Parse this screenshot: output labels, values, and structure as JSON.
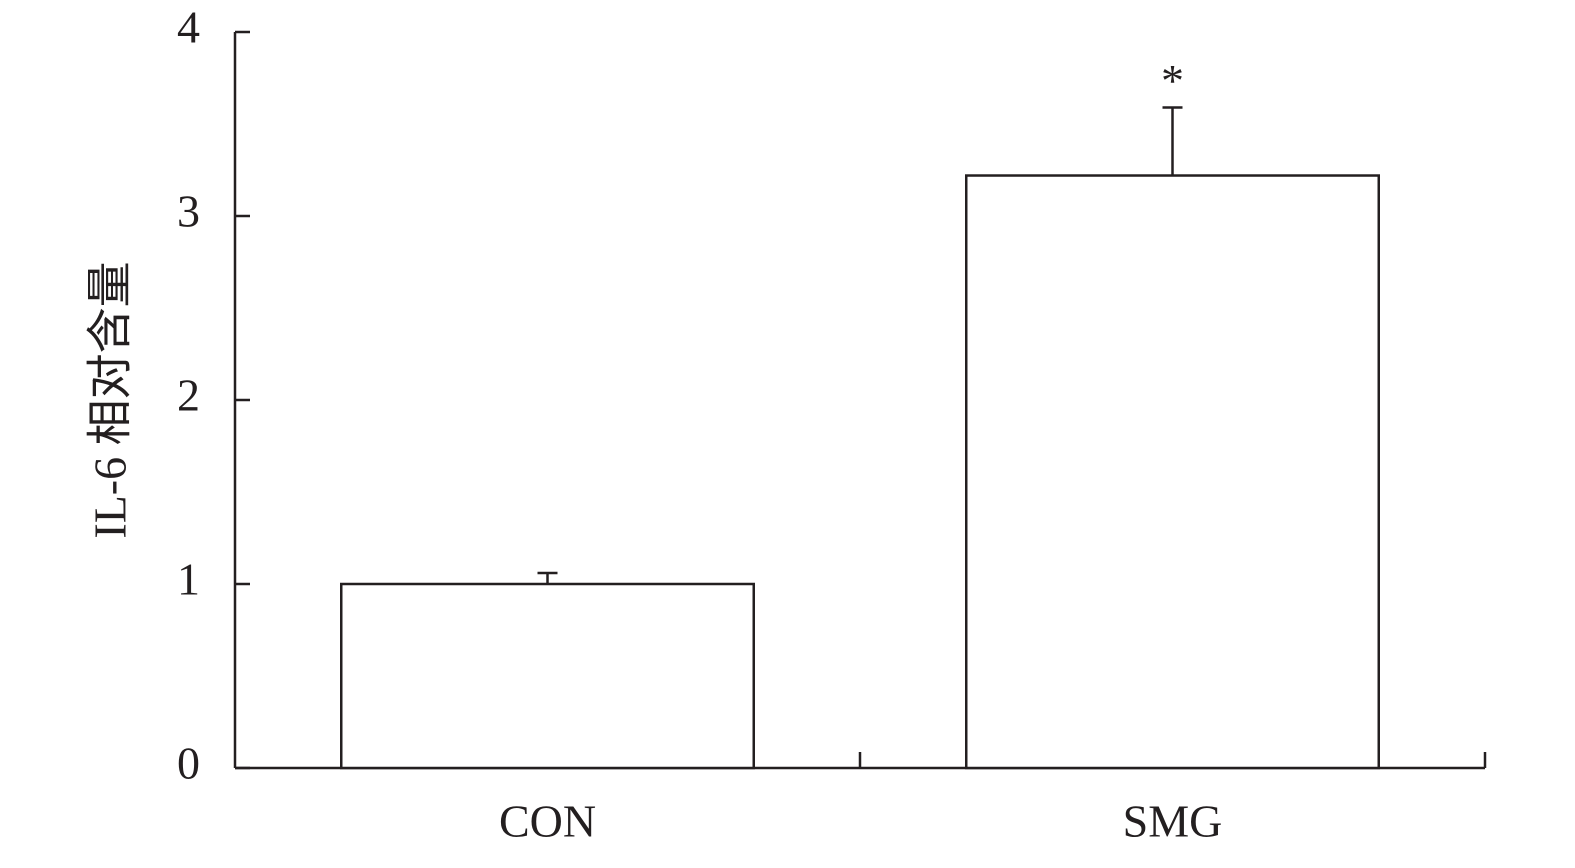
{
  "chart_data": {
    "type": "bar",
    "y_label": "IL-6 相对含量",
    "categories": [
      "CON",
      "SMG"
    ],
    "values": [
      1.0,
      3.22
    ],
    "errors": [
      0.06,
      0.37
    ],
    "color": "#ffffff",
    "ylim": [
      0,
      4
    ],
    "yticks": [
      0,
      1,
      2,
      3,
      4
    ],
    "grid": false,
    "annotations": [
      {
        "category": "SMG",
        "text": "*"
      }
    ]
  }
}
